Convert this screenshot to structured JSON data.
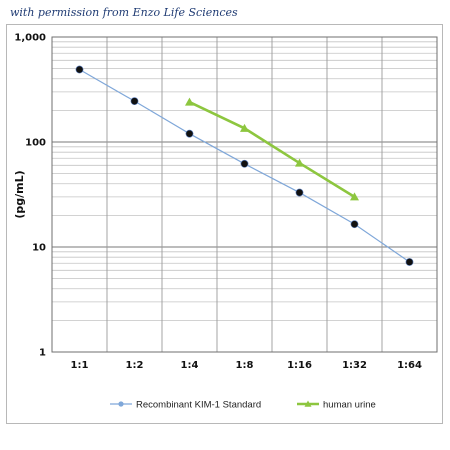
{
  "caption": "with permission from Enzo Life Sciences",
  "chart_data": {
    "type": "line",
    "categories": [
      "1:1",
      "1:2",
      "1:4",
      "1:8",
      "1:16",
      "1:32",
      "1:64"
    ],
    "ylabel": "(pg/mL)",
    "xlabel": "",
    "yscale": "log",
    "ylim": [
      1,
      1000
    ],
    "y_ticks": [
      "1",
      "10",
      "100",
      "1,000"
    ],
    "grid": true,
    "legend_position": "bottom",
    "series": [
      {
        "name": "Recombinant KIM-1 Standard",
        "color": "#7fa7d9",
        "marker": "circle",
        "values": [
          490,
          245,
          120,
          62,
          33,
          16.5,
          7.2
        ]
      },
      {
        "name": "human urine",
        "color": "#8dc63f",
        "marker": "triangle",
        "values": [
          null,
          null,
          240,
          135,
          63,
          30,
          null
        ]
      }
    ]
  }
}
